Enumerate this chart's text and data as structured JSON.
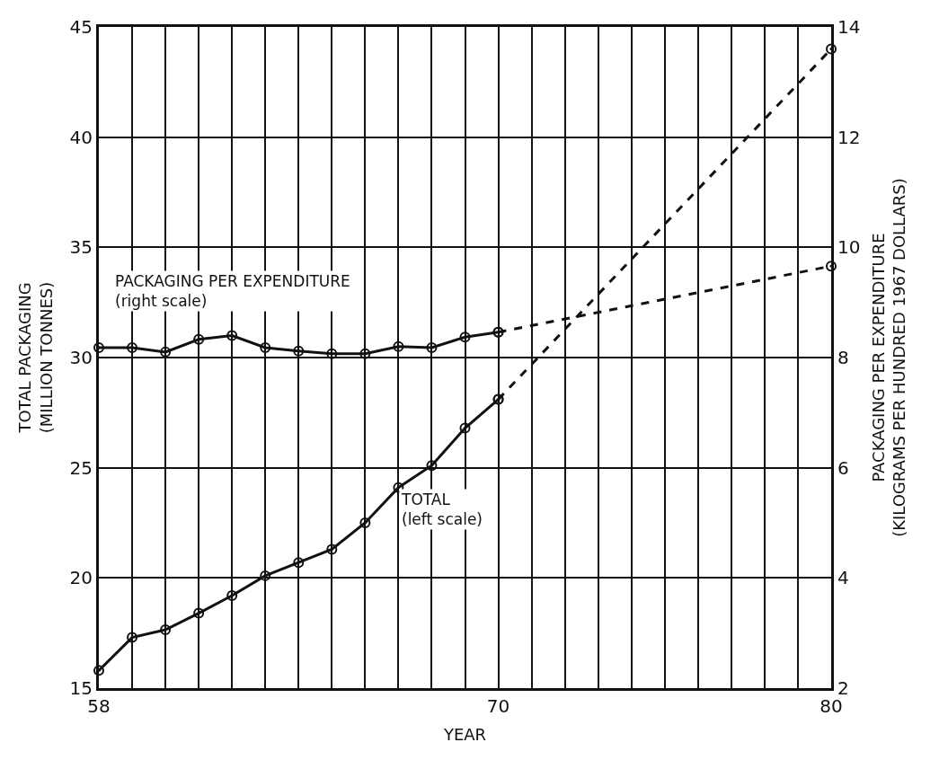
{
  "chart_data": {
    "type": "line",
    "xlabel": "YEAR",
    "ylabel": "TOTAL PACKAGING\n(MILLION TONNES)",
    "y2label": "PACKAGING PER EXPENDITURE\n(KILOGRAMS PER HUNDRED 1967 DOLLARS)",
    "xlim": [
      58,
      80
    ],
    "xticks": [
      58,
      {
        "value": 59,
        "label": null
      },
      {
        "value": 60,
        "label": null
      },
      {
        "value": 61,
        "label": null
      },
      {
        "value": 62,
        "label": null
      },
      {
        "value": 63,
        "label": null
      },
      {
        "value": 64,
        "label": null
      },
      {
        "value": 65,
        "label": null
      },
      {
        "value": 66,
        "label": null
      },
      {
        "value": 67,
        "label": null
      },
      {
        "value": 68,
        "label": null
      },
      {
        "value": 69,
        "label": null
      },
      70,
      {
        "value": 71,
        "label": null
      },
      {
        "value": 72,
        "label": null
      },
      {
        "value": 73,
        "label": null
      },
      {
        "value": 74,
        "label": null
      },
      {
        "value": 75,
        "label": null
      },
      {
        "value": 76,
        "label": null
      },
      {
        "value": 77,
        "label": null
      },
      {
        "value": 78,
        "label": null
      },
      {
        "value": 79,
        "label": null
      },
      80
    ],
    "ylim": [
      15,
      45
    ],
    "yticks": [
      15,
      20,
      25,
      30,
      35,
      40,
      45
    ],
    "y2lim": [
      2,
      14
    ],
    "y2ticks": [
      2,
      4,
      6,
      8,
      10,
      12,
      14
    ],
    "grid": true,
    "legend": false,
    "marker": "circle",
    "series": [
      {
        "color": "#111111",
        "line_style": "solid",
        "x": [
          58,
          59,
          60,
          61,
          62,
          63,
          64,
          65,
          66,
          67,
          68,
          69,
          70
        ],
        "values": [
          15.8,
          17.3,
          17.65,
          18.4,
          19.2,
          20.1,
          20.7,
          21.3,
          22.5,
          24.1,
          25.1,
          26.8,
          28.1
        ]
      },
      {
        "color": "#111111",
        "line_style": "dashed",
        "x": [
          70,
          80
        ],
        "values": [
          28.1,
          44
        ]
      },
      {
        "color": "#111111",
        "line_style": "solid",
        "axis": "y2",
        "x": [
          58,
          59,
          60,
          61,
          62,
          63,
          64,
          65,
          66,
          67,
          68,
          69,
          70
        ],
        "values": [
          8.18,
          8.18,
          8.1,
          8.33,
          8.4,
          8.18,
          8.12,
          8.07,
          8.07,
          8.2,
          8.18,
          8.37,
          8.46
        ]
      },
      {
        "color": "#111111",
        "line_style": "dashed",
        "axis": "y2",
        "x": [
          70,
          80
        ],
        "values": [
          8.46,
          9.66
        ]
      }
    ],
    "annotations": [
      "PACKAGING PER EXPENDITURE\n(right scale)",
      "TOTAL\n(left scale)"
    ]
  }
}
